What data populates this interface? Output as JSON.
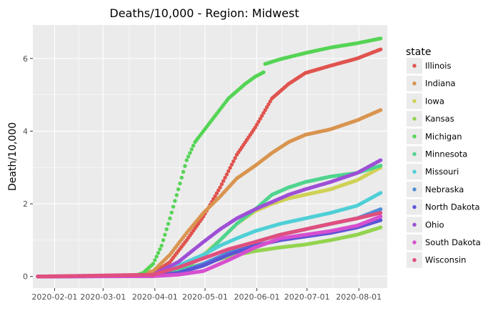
{
  "chart_data": {
    "type": "scatter",
    "title": "Deaths/10,000 - Region: Midwest",
    "xlabel": "",
    "ylabel": "Death/10,000",
    "x_range": [
      "2020-01-22",
      "2020-08-14"
    ],
    "xlim": [
      "2020-01-19",
      "2020-08-18"
    ],
    "ylim": [
      -0.32,
      6.92
    ],
    "x_ticks": [
      "2020-02-01",
      "2020-03-01",
      "2020-04-01",
      "2020-05-01",
      "2020-06-01",
      "2020-07-01",
      "2020-08-01"
    ],
    "y_ticks": [
      0,
      2,
      4,
      6
    ],
    "grid": true,
    "legend": {
      "title": "state",
      "position": "right"
    },
    "series": [
      {
        "name": "Illinois",
        "color": "#e0534e",
        "points": [
          [
            "2020-01-22",
            0
          ],
          [
            "2020-03-20",
            0.02
          ],
          [
            "2020-03-31",
            0.08
          ],
          [
            "2020-04-10",
            0.4
          ],
          [
            "2020-04-20",
            1.0
          ],
          [
            "2020-04-30",
            1.65
          ],
          [
            "2020-05-10",
            2.45
          ],
          [
            "2020-05-20",
            3.35
          ],
          [
            "2020-05-31",
            4.1
          ],
          [
            "2020-06-10",
            4.9
          ],
          [
            "2020-06-20",
            5.3
          ],
          [
            "2020-06-30",
            5.6
          ],
          [
            "2020-07-15",
            5.8
          ],
          [
            "2020-07-31",
            6.0
          ],
          [
            "2020-08-14",
            6.25
          ]
        ]
      },
      {
        "name": "Indiana",
        "color": "#d9944f",
        "points": [
          [
            "2020-01-22",
            0
          ],
          [
            "2020-03-20",
            0.02
          ],
          [
            "2020-03-31",
            0.15
          ],
          [
            "2020-04-10",
            0.6
          ],
          [
            "2020-04-20",
            1.2
          ],
          [
            "2020-04-30",
            1.75
          ],
          [
            "2020-05-10",
            2.2
          ],
          [
            "2020-05-20",
            2.7
          ],
          [
            "2020-05-31",
            3.05
          ],
          [
            "2020-06-10",
            3.4
          ],
          [
            "2020-06-20",
            3.7
          ],
          [
            "2020-06-30",
            3.9
          ],
          [
            "2020-07-15",
            4.05
          ],
          [
            "2020-07-31",
            4.3
          ],
          [
            "2020-08-14",
            4.58
          ]
        ]
      },
      {
        "name": "Iowa",
        "color": "#cfd155",
        "points": [
          [
            "2020-01-22",
            0
          ],
          [
            "2020-03-31",
            0.02
          ],
          [
            "2020-04-15",
            0.2
          ],
          [
            "2020-04-30",
            0.6
          ],
          [
            "2020-05-10",
            1.0
          ],
          [
            "2020-05-20",
            1.45
          ],
          [
            "2020-05-31",
            1.8
          ],
          [
            "2020-06-10",
            2.0
          ],
          [
            "2020-06-20",
            2.15
          ],
          [
            "2020-06-30",
            2.25
          ],
          [
            "2020-07-15",
            2.4
          ],
          [
            "2020-07-31",
            2.65
          ],
          [
            "2020-08-14",
            3.0
          ]
        ]
      },
      {
        "name": "Kansas",
        "color": "#93d44f",
        "points": [
          [
            "2020-01-22",
            0
          ],
          [
            "2020-03-31",
            0.03
          ],
          [
            "2020-04-15",
            0.15
          ],
          [
            "2020-04-30",
            0.35
          ],
          [
            "2020-05-15",
            0.55
          ],
          [
            "2020-05-31",
            0.7
          ],
          [
            "2020-06-15",
            0.8
          ],
          [
            "2020-06-30",
            0.88
          ],
          [
            "2020-07-15",
            1.0
          ],
          [
            "2020-07-31",
            1.15
          ],
          [
            "2020-08-14",
            1.35
          ]
        ]
      },
      {
        "name": "Michigan",
        "color": "#55d455",
        "points": [
          [
            "2020-01-22",
            0
          ],
          [
            "2020-03-20",
            0.02
          ],
          [
            "2020-03-25",
            0.1
          ],
          [
            "2020-03-31",
            0.35
          ],
          [
            "2020-04-05",
            0.85
          ],
          [
            "2020-04-10",
            1.6
          ],
          [
            "2020-04-15",
            2.4
          ],
          [
            "2020-04-20",
            3.2
          ],
          [
            "2020-04-25",
            3.7
          ],
          [
            "2020-04-30",
            4.0
          ],
          [
            "2020-05-05",
            4.3
          ],
          [
            "2020-05-10",
            4.6
          ],
          [
            "2020-05-15",
            4.9
          ],
          [
            "2020-05-20",
            5.1
          ],
          [
            "2020-05-25",
            5.3
          ],
          [
            "2020-05-31",
            5.5
          ],
          [
            "2020-06-05",
            5.62
          ],
          [
            "2020-06-06",
            5.85
          ],
          [
            "2020-06-15",
            5.98
          ],
          [
            "2020-06-30",
            6.15
          ],
          [
            "2020-07-15",
            6.3
          ],
          [
            "2020-07-31",
            6.42
          ],
          [
            "2020-08-14",
            6.55
          ]
        ]
      },
      {
        "name": "Minnesota",
        "color": "#4fd48e",
        "points": [
          [
            "2020-01-22",
            0
          ],
          [
            "2020-03-31",
            0.02
          ],
          [
            "2020-04-15",
            0.15
          ],
          [
            "2020-04-30",
            0.55
          ],
          [
            "2020-05-10",
            1.0
          ],
          [
            "2020-05-20",
            1.45
          ],
          [
            "2020-05-31",
            1.85
          ],
          [
            "2020-06-10",
            2.25
          ],
          [
            "2020-06-20",
            2.45
          ],
          [
            "2020-06-30",
            2.6
          ],
          [
            "2020-07-15",
            2.75
          ],
          [
            "2020-07-31",
            2.85
          ],
          [
            "2020-08-14",
            3.05
          ]
        ]
      },
      {
        "name": "Missouri",
        "color": "#4fcfd6",
        "points": [
          [
            "2020-01-22",
            0
          ],
          [
            "2020-03-31",
            0.03
          ],
          [
            "2020-04-15",
            0.3
          ],
          [
            "2020-04-30",
            0.6
          ],
          [
            "2020-05-10",
            0.85
          ],
          [
            "2020-05-20",
            1.05
          ],
          [
            "2020-05-31",
            1.25
          ],
          [
            "2020-06-15",
            1.45
          ],
          [
            "2020-06-30",
            1.6
          ],
          [
            "2020-07-15",
            1.75
          ],
          [
            "2020-07-31",
            1.95
          ],
          [
            "2020-08-14",
            2.3
          ]
        ]
      },
      {
        "name": "Nebraska",
        "color": "#4f8ed6",
        "points": [
          [
            "2020-01-22",
            0
          ],
          [
            "2020-03-31",
            0.02
          ],
          [
            "2020-04-15",
            0.1
          ],
          [
            "2020-04-30",
            0.35
          ],
          [
            "2020-05-15",
            0.65
          ],
          [
            "2020-05-31",
            0.95
          ],
          [
            "2020-06-15",
            1.15
          ],
          [
            "2020-06-30",
            1.3
          ],
          [
            "2020-07-15",
            1.45
          ],
          [
            "2020-07-31",
            1.6
          ],
          [
            "2020-08-14",
            1.85
          ]
        ]
      },
      {
        "name": "North Dakota",
        "color": "#5a55d6",
        "points": [
          [
            "2020-01-22",
            0
          ],
          [
            "2020-03-31",
            0.01
          ],
          [
            "2020-04-15",
            0.1
          ],
          [
            "2020-04-30",
            0.3
          ],
          [
            "2020-05-15",
            0.6
          ],
          [
            "2020-05-31",
            0.85
          ],
          [
            "2020-06-15",
            1.0
          ],
          [
            "2020-06-30",
            1.1
          ],
          [
            "2020-07-15",
            1.2
          ],
          [
            "2020-07-31",
            1.35
          ],
          [
            "2020-08-14",
            1.55
          ]
        ]
      },
      {
        "name": "Ohio",
        "color": "#9e4fd6",
        "points": [
          [
            "2020-01-22",
            0
          ],
          [
            "2020-03-20",
            0.01
          ],
          [
            "2020-03-31",
            0.05
          ],
          [
            "2020-04-15",
            0.4
          ],
          [
            "2020-04-30",
            0.95
          ],
          [
            "2020-05-10",
            1.3
          ],
          [
            "2020-05-20",
            1.6
          ],
          [
            "2020-05-31",
            1.85
          ],
          [
            "2020-06-10",
            2.05
          ],
          [
            "2020-06-20",
            2.25
          ],
          [
            "2020-06-30",
            2.4
          ],
          [
            "2020-07-15",
            2.6
          ],
          [
            "2020-07-31",
            2.85
          ],
          [
            "2020-08-14",
            3.2
          ]
        ]
      },
      {
        "name": "South Dakota",
        "color": "#d64fcf",
        "points": [
          [
            "2020-01-22",
            0
          ],
          [
            "2020-03-31",
            0.01
          ],
          [
            "2020-04-15",
            0.05
          ],
          [
            "2020-04-30",
            0.15
          ],
          [
            "2020-05-15",
            0.45
          ],
          [
            "2020-05-31",
            0.8
          ],
          [
            "2020-06-15",
            1.05
          ],
          [
            "2020-06-30",
            1.15
          ],
          [
            "2020-07-15",
            1.25
          ],
          [
            "2020-07-31",
            1.4
          ],
          [
            "2020-08-14",
            1.65
          ]
        ]
      },
      {
        "name": "Wisconsin",
        "color": "#e04f7e",
        "points": [
          [
            "2020-01-22",
            0
          ],
          [
            "2020-03-31",
            0.05
          ],
          [
            "2020-04-15",
            0.25
          ],
          [
            "2020-04-30",
            0.5
          ],
          [
            "2020-05-15",
            0.75
          ],
          [
            "2020-05-31",
            0.95
          ],
          [
            "2020-06-15",
            1.15
          ],
          [
            "2020-06-30",
            1.3
          ],
          [
            "2020-07-15",
            1.45
          ],
          [
            "2020-07-31",
            1.6
          ],
          [
            "2020-08-14",
            1.75
          ]
        ]
      }
    ]
  }
}
